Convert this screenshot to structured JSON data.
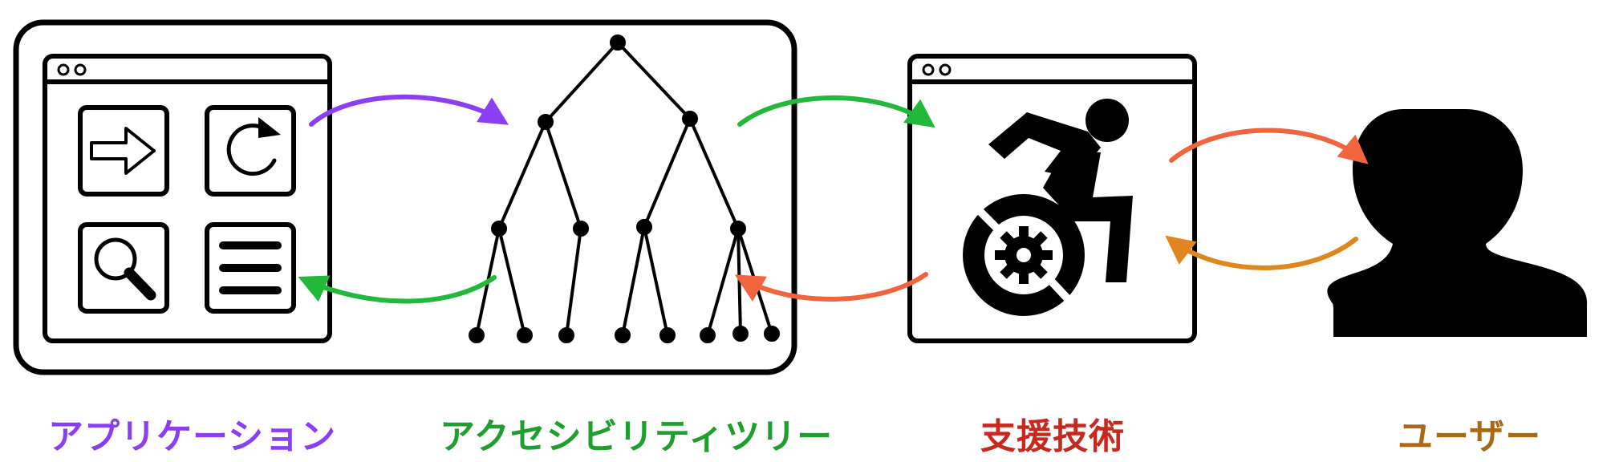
{
  "colors": {
    "application": "#8a3ff5",
    "tree": "#1f9f2e",
    "tree_arrow": "#22b83a",
    "assistive": "#c8281e",
    "assistive_arrow": "#f2643e",
    "user": "#a86a16",
    "user_arrow": "#e0861e",
    "ink": "#000000"
  },
  "captions": {
    "application": "アプリケーション",
    "accessibility_tree": "アクセシビリティツリー",
    "assistive_technology": "支援技術",
    "user": "ユーザー"
  },
  "icons": {
    "app_buttons": [
      "arrow-right-icon",
      "refresh-icon",
      "search-icon",
      "menu-icon"
    ],
    "assistive": "accessible-wheelchair-gear-icon",
    "user": "user-silhouette-icon",
    "tree": "tree-icon"
  }
}
